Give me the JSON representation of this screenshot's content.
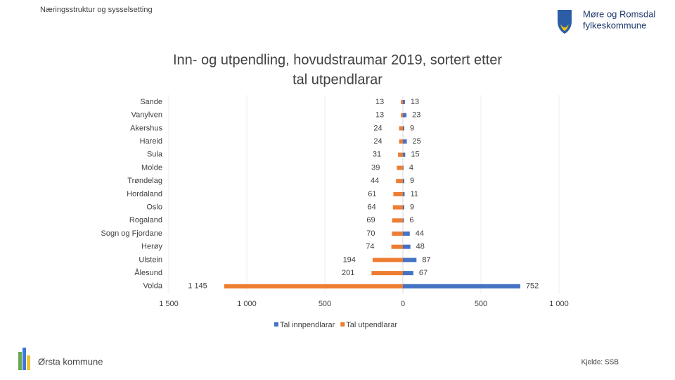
{
  "header": "Næringsstruktur og sysselsetting",
  "logo": [
    "Møre og Romsdal",
    "fylkeskommune"
  ],
  "footer": {
    "left": "Ørsta kommune",
    "right": "Kjelde: SSB"
  },
  "chart_data": {
    "type": "bar",
    "orientation": "horizontal",
    "title": [
      "Inn- og utpendling, hovudstraumar 2019, sortert etter",
      "tal utpendlarar"
    ],
    "categories": [
      "Sande",
      "Vanylven",
      "Akershus",
      "Hareid",
      "Sula",
      "Molde",
      "Trøndelag",
      "Hordaland",
      "Oslo",
      "Rogaland",
      "Sogn og Fjordane",
      "Herøy",
      "Ulstein",
      "Ålesund",
      "Volda"
    ],
    "series": [
      {
        "name": "Tal innpendlarar",
        "color": "#4472c4",
        "values": [
          13,
          23,
          9,
          25,
          15,
          4,
          9,
          11,
          9,
          6,
          44,
          48,
          87,
          67,
          752
        ]
      },
      {
        "name": "Tal utpendlarar",
        "color": "#ed7d31",
        "values": [
          -13,
          -13,
          -24,
          -24,
          -31,
          -39,
          -44,
          -61,
          -64,
          -69,
          -70,
          -74,
          -194,
          -201,
          -1145
        ],
        "value_labels": [
          "13",
          "13",
          "24",
          "24",
          "31",
          "39",
          "44",
          "61",
          "64",
          "69",
          "70",
          "74",
          "194",
          "201",
          "1 145"
        ]
      }
    ],
    "xlim": [
      -1500,
      1000
    ],
    "xticks": [
      {
        "value": -1500,
        "label": "1 500"
      },
      {
        "value": -1000,
        "label": "1 000"
      },
      {
        "value": -500,
        "label": "500"
      },
      0,
      500,
      {
        "value": 1000,
        "label": "1 000"
      }
    ],
    "grid": true,
    "legend": "bottom"
  }
}
